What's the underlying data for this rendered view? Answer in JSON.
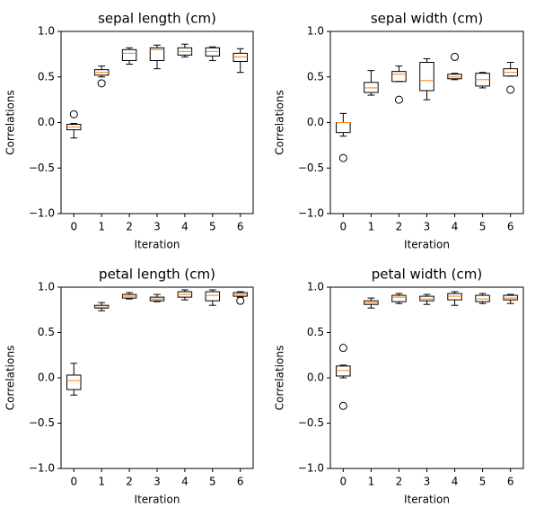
{
  "chart_data": [
    {
      "type": "box",
      "title": "sepal length (cm)",
      "xlabel": "Iteration",
      "ylabel": "Correlations",
      "categories": [
        "0",
        "1",
        "2",
        "3",
        "4",
        "5",
        "6"
      ],
      "boxes": [
        {
          "whislo": -0.17,
          "q1": -0.08,
          "med": -0.05,
          "q3": -0.02,
          "whishi": -0.01,
          "fliers": [
            0.09
          ]
        },
        {
          "whislo": 0.5,
          "q1": 0.52,
          "med": 0.55,
          "q3": 0.58,
          "whishi": 0.62,
          "fliers": [
            0.43
          ]
        },
        {
          "whislo": 0.64,
          "q1": 0.68,
          "med": 0.76,
          "q3": 0.8,
          "whishi": 0.82
        },
        {
          "whislo": 0.59,
          "q1": 0.68,
          "med": 0.8,
          "q3": 0.82,
          "whishi": 0.85
        },
        {
          "whislo": 0.72,
          "q1": 0.74,
          "med": 0.78,
          "q3": 0.82,
          "whishi": 0.86
        },
        {
          "whislo": 0.68,
          "q1": 0.73,
          "med": 0.78,
          "q3": 0.82,
          "whishi": 0.83
        },
        {
          "whislo": 0.55,
          "q1": 0.67,
          "med": 0.72,
          "q3": 0.76,
          "whishi": 0.81
        }
      ],
      "ylim": [
        -1,
        1
      ],
      "yticks": [
        {
          "value": -1,
          "label": "−1.0"
        },
        {
          "value": -0.5,
          "label": "−0.5"
        },
        {
          "value": 0,
          "label": "0.0"
        },
        {
          "value": 0.5,
          "label": "0.5"
        },
        {
          "value": 1,
          "label": "1.0"
        }
      ],
      "box_color": "#000000",
      "median_color": "#ff7f0e"
    },
    {
      "type": "box",
      "title": "sepal width (cm)",
      "xlabel": "Iteration",
      "ylabel": "Correlations",
      "categories": [
        "0",
        "1",
        "2",
        "3",
        "4",
        "5",
        "6"
      ],
      "boxes": [
        {
          "whislo": -0.15,
          "q1": -0.11,
          "med": 0.0,
          "q3": 0.0,
          "whishi": 0.1,
          "fliers": [
            -0.39
          ]
        },
        {
          "whislo": 0.3,
          "q1": 0.33,
          "med": 0.38,
          "q3": 0.44,
          "whishi": 0.57
        },
        {
          "whislo": 0.45,
          "q1": 0.45,
          "med": 0.53,
          "q3": 0.56,
          "whishi": 0.62,
          "fliers": [
            0.25
          ]
        },
        {
          "whislo": 0.25,
          "q1": 0.35,
          "med": 0.46,
          "q3": 0.66,
          "whishi": 0.7
        },
        {
          "whislo": 0.47,
          "q1": 0.48,
          "med": 0.5,
          "q3": 0.53,
          "whishi": 0.54,
          "fliers": [
            0.72
          ]
        },
        {
          "whislo": 0.38,
          "q1": 0.4,
          "med": 0.47,
          "q3": 0.54,
          "whishi": 0.55
        },
        {
          "whislo": 0.51,
          "q1": 0.51,
          "med": 0.55,
          "q3": 0.59,
          "whishi": 0.66,
          "fliers": [
            0.36
          ]
        }
      ],
      "ylim": [
        -1,
        1
      ],
      "yticks": [
        {
          "value": -1,
          "label": "−1.0"
        },
        {
          "value": -0.5,
          "label": "−0.5"
        },
        {
          "value": 0,
          "label": "0.0"
        },
        {
          "value": 0.5,
          "label": "0.5"
        },
        {
          "value": 1,
          "label": "1.0"
        }
      ],
      "box_color": "#000000",
      "median_color": "#ff7f0e"
    },
    {
      "type": "box",
      "title": "petal length (cm)",
      "xlabel": "Iteration",
      "ylabel": "Correlations",
      "categories": [
        "0",
        "1",
        "2",
        "3",
        "4",
        "5",
        "6"
      ],
      "boxes": [
        {
          "whislo": -0.19,
          "q1": -0.13,
          "med": -0.03,
          "q3": 0.03,
          "whishi": 0.16
        },
        {
          "whislo": 0.74,
          "q1": 0.77,
          "med": 0.78,
          "q3": 0.8,
          "whishi": 0.83
        },
        {
          "whislo": 0.87,
          "q1": 0.88,
          "med": 0.9,
          "q3": 0.92,
          "whishi": 0.94
        },
        {
          "whislo": 0.84,
          "q1": 0.85,
          "med": 0.87,
          "q3": 0.89,
          "whishi": 0.92
        },
        {
          "whislo": 0.86,
          "q1": 0.89,
          "med": 0.92,
          "q3": 0.95,
          "whishi": 0.97
        },
        {
          "whislo": 0.8,
          "q1": 0.85,
          "med": 0.91,
          "q3": 0.95,
          "whishi": 0.97
        },
        {
          "whislo": 0.89,
          "q1": 0.9,
          "med": 0.92,
          "q3": 0.94,
          "whishi": 0.95,
          "fliers": [
            0.85
          ]
        }
      ],
      "ylim": [
        -1,
        1
      ],
      "yticks": [
        {
          "value": -1,
          "label": "−1.0"
        },
        {
          "value": -0.5,
          "label": "−0.5"
        },
        {
          "value": 0,
          "label": "0.0"
        },
        {
          "value": 0.5,
          "label": "0.5"
        },
        {
          "value": 1,
          "label": "1.0"
        }
      ],
      "box_color": "#000000",
      "median_color": "#ff7f0e"
    },
    {
      "type": "box",
      "title": "petal width (cm)",
      "xlabel": "Iteration",
      "ylabel": "Correlations",
      "categories": [
        "0",
        "1",
        "2",
        "3",
        "4",
        "5",
        "6"
      ],
      "boxes": [
        {
          "whislo": 0.0,
          "q1": 0.02,
          "med": 0.08,
          "q3": 0.13,
          "whishi": 0.14,
          "fliers": [
            0.33,
            -0.31
          ]
        },
        {
          "whislo": 0.77,
          "q1": 0.81,
          "med": 0.83,
          "q3": 0.85,
          "whishi": 0.88
        },
        {
          "whislo": 0.82,
          "q1": 0.84,
          "med": 0.89,
          "q3": 0.91,
          "whishi": 0.93
        },
        {
          "whislo": 0.81,
          "q1": 0.85,
          "med": 0.87,
          "q3": 0.9,
          "whishi": 0.92
        },
        {
          "whislo": 0.8,
          "q1": 0.86,
          "med": 0.9,
          "q3": 0.93,
          "whishi": 0.95
        },
        {
          "whislo": 0.82,
          "q1": 0.84,
          "med": 0.87,
          "q3": 0.91,
          "whishi": 0.93
        },
        {
          "whislo": 0.82,
          "q1": 0.86,
          "med": 0.88,
          "q3": 0.91,
          "whishi": 0.92
        }
      ],
      "ylim": [
        -1,
        1
      ],
      "yticks": [
        {
          "value": -1,
          "label": "−1.0"
        },
        {
          "value": -0.5,
          "label": "−0.5"
        },
        {
          "value": 0,
          "label": "0.0"
        },
        {
          "value": 0.5,
          "label": "0.5"
        },
        {
          "value": 1,
          "label": "1.0"
        }
      ],
      "box_color": "#000000",
      "median_color": "#ff7f0e"
    }
  ]
}
